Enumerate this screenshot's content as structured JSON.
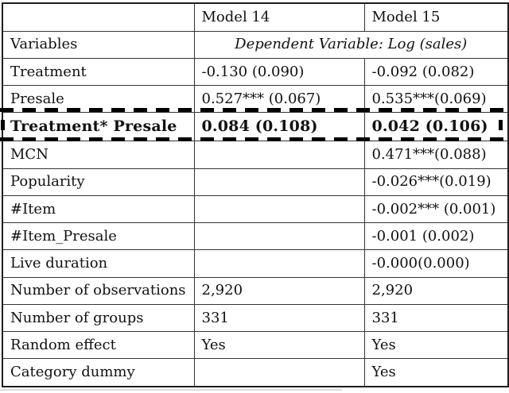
{
  "colors": {
    "background": "#ffffff",
    "text": "#111111",
    "grid_border": "#343434",
    "dashed_highlight": "#000000"
  },
  "table": {
    "header": {
      "empty": "",
      "model14": "Model 14",
      "model15": "Model 15"
    },
    "dependent": {
      "label": "Variables",
      "value": "Dependent Variable: Log (sales)"
    },
    "rows": [
      {
        "label": "Treatment",
        "m14": "-0.130 (0.090)",
        "m15": "-0.092 (0.082)"
      },
      {
        "label": "Presale",
        "m14": "0.527*** (0.067)",
        "m15": "0.535***(0.069)"
      },
      {
        "label": "Treatment* Presale",
        "m14": "0.084 (0.108)",
        "m15": "0.042 (0.106)",
        "bold": true,
        "highlighted": true
      },
      {
        "label": "MCN",
        "m14": "",
        "m15": "0.471***(0.088)"
      },
      {
        "label": "Popularity",
        "m14": "",
        "m15": "-0.026***(0.019)"
      },
      {
        "label": "#Item",
        "m14": "",
        "m15": "-0.002*** (0.001)"
      },
      {
        "label": "#Item_Presale",
        "m14": "",
        "m15": "-0.001 (0.002)"
      },
      {
        "label": "Live duration",
        "m14": "",
        "m15": "-0.000(0.000)"
      },
      {
        "label": "Number of observations",
        "m14": "2,920",
        "m15": "2,920"
      },
      {
        "label": "Number of groups",
        "m14": "331",
        "m15": "331"
      },
      {
        "label": "Random effect",
        "m14": "Yes",
        "m15": "Yes"
      },
      {
        "label": "Category dummy",
        "m14": "",
        "m15": "Yes"
      }
    ]
  }
}
